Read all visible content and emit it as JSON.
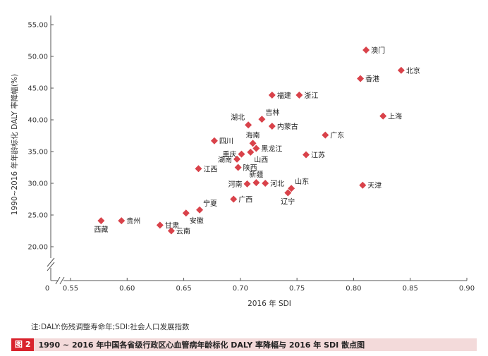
{
  "chart_data": {
    "type": "scatter",
    "xlabel": "2016 年 SDI",
    "ylabel": "1990~2016 年年龄标化 DALY 率降幅(%)",
    "xlim": [
      0.55,
      0.9
    ],
    "ylim": [
      20.0,
      55.0
    ],
    "x_origin_label": "0",
    "x_ticks": [
      "0.55",
      "0.60",
      "0.65",
      "0.70",
      "0.75",
      "0.80",
      "0.85",
      "0.90"
    ],
    "y_ticks": [
      "20.00",
      "25.00",
      "30.00",
      "35.00",
      "40.00",
      "45.00",
      "50.00",
      "55.00"
    ],
    "grid": false,
    "marker_color": "#d9424a",
    "points": [
      {
        "label": "澳门",
        "x": 0.811,
        "y": 51.0,
        "lpos": "right"
      },
      {
        "label": "北京",
        "x": 0.842,
        "y": 47.8,
        "lpos": "right"
      },
      {
        "label": "香港",
        "x": 0.806,
        "y": 46.5,
        "lpos": "right"
      },
      {
        "label": "福建",
        "x": 0.728,
        "y": 43.9,
        "lpos": "right"
      },
      {
        "label": "浙江",
        "x": 0.752,
        "y": 43.9,
        "lpos": "right"
      },
      {
        "label": "上海",
        "x": 0.826,
        "y": 40.6,
        "lpos": "right"
      },
      {
        "label": "吉林",
        "x": 0.719,
        "y": 40.1,
        "lpos": "above-right"
      },
      {
        "label": "湖北",
        "x": 0.707,
        "y": 39.2,
        "lpos": "above-left"
      },
      {
        "label": "内蒙古",
        "x": 0.728,
        "y": 39.0,
        "lpos": "right"
      },
      {
        "label": "广东",
        "x": 0.775,
        "y": 37.6,
        "lpos": "right"
      },
      {
        "label": "四川",
        "x": 0.677,
        "y": 36.7,
        "lpos": "right"
      },
      {
        "label": "海南",
        "x": 0.711,
        "y": 36.3,
        "lpos": "above"
      },
      {
        "label": "黑龙江",
        "x": 0.714,
        "y": 35.5,
        "lpos": "right"
      },
      {
        "label": "重庆",
        "x": 0.701,
        "y": 34.6,
        "lpos": "left"
      },
      {
        "label": "江苏",
        "x": 0.758,
        "y": 34.5,
        "lpos": "right"
      },
      {
        "label": "山西",
        "x": 0.709,
        "y": 34.9,
        "lpos": "below-right"
      },
      {
        "label": "湖南",
        "x": 0.697,
        "y": 33.8,
        "lpos": "left"
      },
      {
        "label": "陕西",
        "x": 0.698,
        "y": 32.5,
        "lpos": "right"
      },
      {
        "label": "江西",
        "x": 0.663,
        "y": 32.3,
        "lpos": "right"
      },
      {
        "label": "新疆",
        "x": 0.714,
        "y": 30.1,
        "lpos": "above"
      },
      {
        "label": "河南",
        "x": 0.706,
        "y": 29.9,
        "lpos": "left"
      },
      {
        "label": "河北",
        "x": 0.722,
        "y": 30.0,
        "lpos": "right"
      },
      {
        "label": "天津",
        "x": 0.808,
        "y": 29.7,
        "lpos": "right"
      },
      {
        "label": "山东",
        "x": 0.745,
        "y": 29.2,
        "lpos": "above-right"
      },
      {
        "label": "辽宁",
        "x": 0.742,
        "y": 28.5,
        "lpos": "below"
      },
      {
        "label": "广西",
        "x": 0.694,
        "y": 27.5,
        "lpos": "right"
      },
      {
        "label": "宁夏",
        "x": 0.664,
        "y": 25.8,
        "lpos": "above-right"
      },
      {
        "label": "安徽",
        "x": 0.652,
        "y": 25.3,
        "lpos": "below-right"
      },
      {
        "label": "西藏",
        "x": 0.577,
        "y": 24.1,
        "lpos": "below"
      },
      {
        "label": "贵州",
        "x": 0.595,
        "y": 24.1,
        "lpos": "right"
      },
      {
        "label": "甘肃",
        "x": 0.629,
        "y": 23.4,
        "lpos": "right"
      },
      {
        "label": "云南",
        "x": 0.639,
        "y": 22.5,
        "lpos": "right"
      }
    ]
  },
  "note": "注:DALY:伤残调整寿命年;SDI:社会人口发展指数",
  "caption": {
    "badge": "图 2",
    "text": "1990 ~ 2016 年中国各省级行政区心血管病年龄标化 DALY 率降幅与 2016 年 SDI 散点图"
  }
}
